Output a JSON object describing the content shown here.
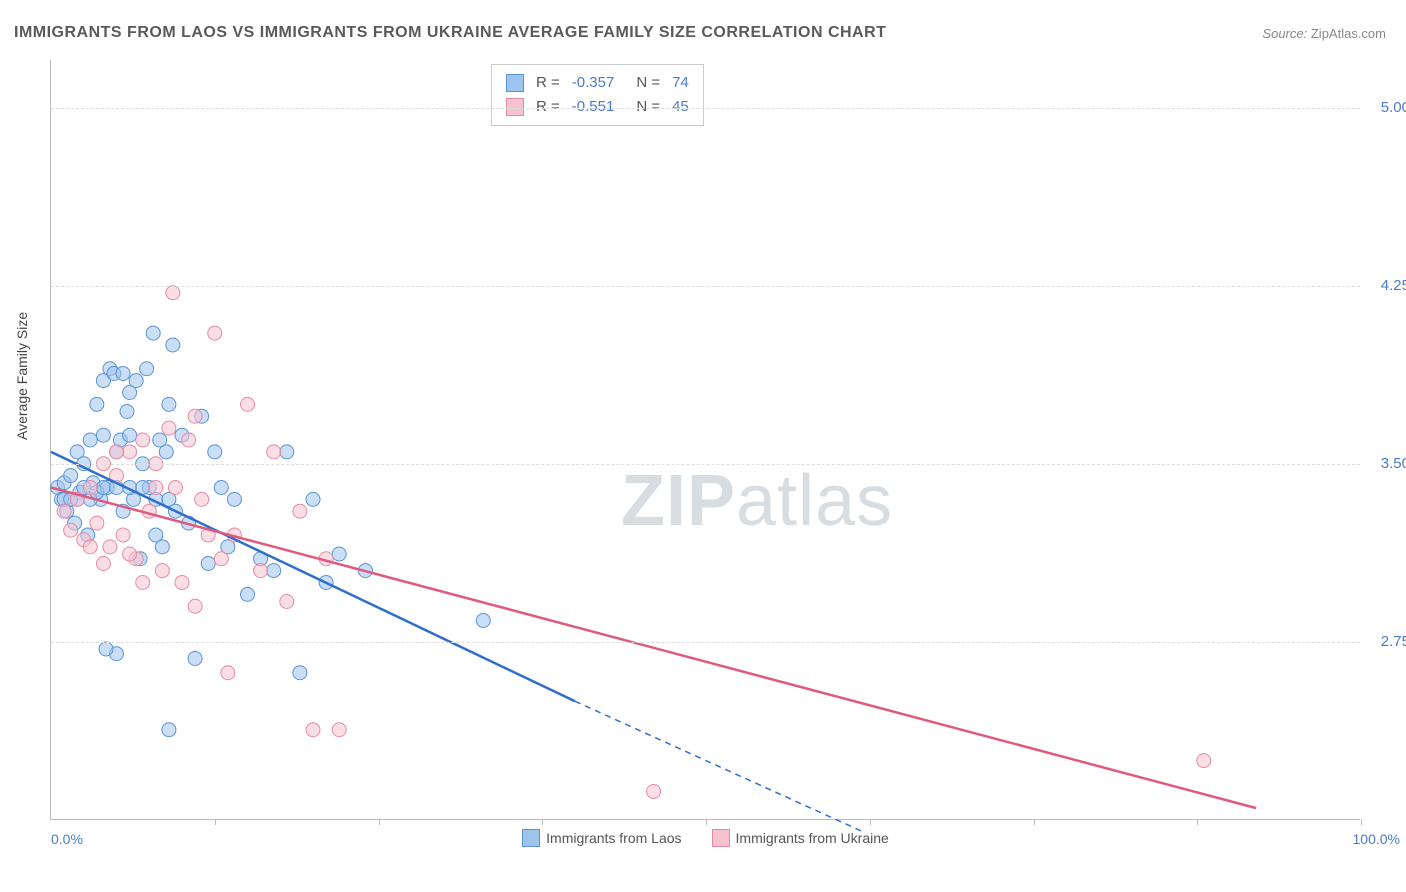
{
  "title": "IMMIGRANTS FROM LAOS VS IMMIGRANTS FROM UKRAINE AVERAGE FAMILY SIZE CORRELATION CHART",
  "source_label": "Source:",
  "source_value": "ZipAtlas.com",
  "watermark_zip": "ZIP",
  "watermark_atlas": "atlas",
  "ylabel": "Average Family Size",
  "chart": {
    "type": "scatter",
    "xlim": [
      0,
      100
    ],
    "ylim": [
      2.0,
      5.2
    ],
    "xticks": [
      12.5,
      25,
      37.5,
      50,
      62.5,
      75,
      87.5,
      100
    ],
    "yticks": [
      2.75,
      3.5,
      4.25,
      5.0
    ],
    "ytick_labels": [
      "2.75",
      "3.50",
      "4.25",
      "5.00"
    ],
    "xmin_label": "0.0%",
    "xmax_label": "100.0%",
    "grid_color": "#dddddd",
    "axis_color": "#bbbbbb",
    "background_color": "#ffffff",
    "marker_radius": 7,
    "marker_opacity": 0.55,
    "series": [
      {
        "name": "Immigrants from Laos",
        "fill_color": "#9ec3ed",
        "stroke_color": "#5a93d6",
        "line_color": "#2f6fc9",
        "R": "-0.357",
        "N": "74",
        "trend": {
          "x1": 0,
          "y1": 3.55,
          "x2": 40,
          "y2": 2.5,
          "dash_extend_x": 62,
          "dash_extend_y": 1.95
        },
        "points": [
          [
            0.5,
            3.4
          ],
          [
            0.8,
            3.35
          ],
          [
            1.0,
            3.42
          ],
          [
            1.2,
            3.3
          ],
          [
            1.5,
            3.45
          ],
          [
            1.8,
            3.25
          ],
          [
            2.0,
            3.55
          ],
          [
            2.2,
            3.38
          ],
          [
            2.5,
            3.5
          ],
          [
            2.8,
            3.2
          ],
          [
            3.0,
            3.6
          ],
          [
            3.2,
            3.42
          ],
          [
            3.5,
            3.75
          ],
          [
            3.8,
            3.35
          ],
          [
            4.0,
            3.85
          ],
          [
            4.3,
            3.4
          ],
          [
            4.5,
            3.9
          ],
          [
            4.8,
            3.88
          ],
          [
            5.0,
            3.55
          ],
          [
            5.3,
            3.6
          ],
          [
            5.5,
            3.3
          ],
          [
            5.8,
            3.72
          ],
          [
            6.0,
            3.8
          ],
          [
            6.3,
            3.35
          ],
          [
            6.5,
            3.85
          ],
          [
            6.8,
            3.1
          ],
          [
            7.0,
            3.5
          ],
          [
            7.3,
            3.9
          ],
          [
            7.5,
            3.4
          ],
          [
            7.8,
            4.05
          ],
          [
            8.0,
            3.2
          ],
          [
            8.3,
            3.6
          ],
          [
            8.5,
            3.15
          ],
          [
            8.8,
            3.55
          ],
          [
            9.0,
            3.75
          ],
          [
            9.3,
            4.0
          ],
          [
            9.5,
            3.3
          ],
          [
            10.0,
            3.62
          ],
          [
            10.5,
            3.25
          ],
          [
            11.0,
            2.68
          ],
          [
            11.5,
            3.7
          ],
          [
            12.0,
            3.08
          ],
          [
            12.5,
            3.55
          ],
          [
            13.0,
            3.4
          ],
          [
            13.5,
            3.15
          ],
          [
            14.0,
            3.35
          ],
          [
            15.0,
            2.95
          ],
          [
            16.0,
            3.1
          ],
          [
            17.0,
            3.05
          ],
          [
            18.0,
            3.55
          ],
          [
            19.0,
            2.62
          ],
          [
            20.0,
            3.35
          ],
          [
            21.0,
            3.0
          ],
          [
            22.0,
            3.12
          ],
          [
            24.0,
            3.05
          ],
          [
            9.0,
            2.38
          ],
          [
            5.0,
            2.7
          ],
          [
            4.2,
            2.72
          ],
          [
            3.0,
            3.35
          ],
          [
            2.0,
            3.35
          ],
          [
            1.0,
            3.35
          ],
          [
            1.5,
            3.35
          ],
          [
            2.5,
            3.4
          ],
          [
            3.5,
            3.38
          ],
          [
            4.0,
            3.4
          ],
          [
            5.0,
            3.4
          ],
          [
            6.0,
            3.4
          ],
          [
            7.0,
            3.4
          ],
          [
            8.0,
            3.35
          ],
          [
            9.0,
            3.35
          ],
          [
            33.0,
            2.84
          ],
          [
            4.0,
            3.62
          ],
          [
            5.5,
            3.88
          ],
          [
            6.0,
            3.62
          ]
        ]
      },
      {
        "name": "Immigrants from Ukraine",
        "fill_color": "#f5c3cf",
        "stroke_color": "#e78aa3",
        "line_color": "#e05a7e",
        "R": "-0.551",
        "N": "45",
        "trend": {
          "x1": 0,
          "y1": 3.4,
          "x2": 92,
          "y2": 2.05
        },
        "points": [
          [
            1.0,
            3.3
          ],
          [
            1.5,
            3.22
          ],
          [
            2.0,
            3.35
          ],
          [
            2.5,
            3.18
          ],
          [
            3.0,
            3.4
          ],
          [
            3.5,
            3.25
          ],
          [
            4.0,
            3.5
          ],
          [
            4.5,
            3.15
          ],
          [
            5.0,
            3.45
          ],
          [
            5.5,
            3.2
          ],
          [
            6.0,
            3.55
          ],
          [
            6.5,
            3.1
          ],
          [
            7.0,
            3.6
          ],
          [
            7.5,
            3.3
          ],
          [
            8.0,
            3.5
          ],
          [
            8.5,
            3.05
          ],
          [
            9.0,
            3.65
          ],
          [
            9.3,
            4.22
          ],
          [
            9.5,
            3.4
          ],
          [
            10.0,
            3.0
          ],
          [
            10.5,
            3.6
          ],
          [
            11.0,
            2.9
          ],
          [
            11.5,
            3.35
          ],
          [
            12.0,
            3.2
          ],
          [
            12.5,
            4.05
          ],
          [
            13.0,
            3.1
          ],
          [
            13.5,
            2.62
          ],
          [
            14.0,
            3.2
          ],
          [
            15.0,
            3.75
          ],
          [
            16.0,
            3.05
          ],
          [
            17.0,
            3.55
          ],
          [
            18.0,
            2.92
          ],
          [
            19.0,
            3.3
          ],
          [
            20.0,
            2.38
          ],
          [
            21.0,
            3.1
          ],
          [
            22.0,
            2.38
          ],
          [
            46.0,
            2.12
          ],
          [
            88.0,
            2.25
          ],
          [
            3.0,
            3.15
          ],
          [
            4.0,
            3.08
          ],
          [
            5.0,
            3.55
          ],
          [
            6.0,
            3.12
          ],
          [
            7.0,
            3.0
          ],
          [
            8.0,
            3.4
          ],
          [
            11.0,
            3.7
          ]
        ]
      }
    ]
  }
}
